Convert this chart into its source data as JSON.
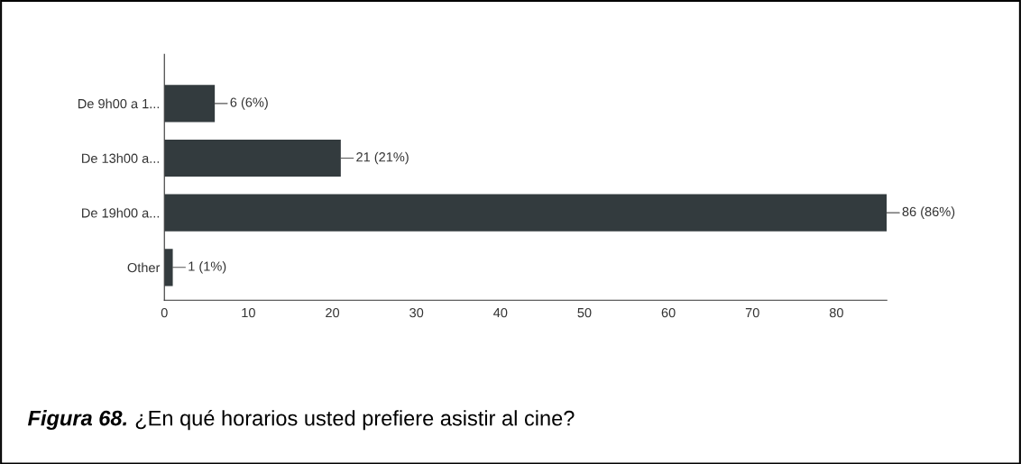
{
  "chart_data": {
    "type": "bar",
    "orientation": "horizontal",
    "title": "Figura 68.",
    "subtitle": "¿En qué horarios usted prefiere asistir al cine?",
    "categories": [
      "De 9h00 a 1...",
      "De 13h00 a...",
      "De 19h00 a...",
      "Other"
    ],
    "values": [
      6,
      21,
      86,
      1
    ],
    "value_labels": [
      "6 (6%)",
      "21 (21%)",
      "86 (86%)",
      "1 (1%)"
    ],
    "color": "#333b3e",
    "xlim": [
      0,
      86
    ],
    "xticks": [
      0,
      10,
      20,
      30,
      40,
      50,
      60,
      70,
      80
    ],
    "grid": false,
    "legend": false
  }
}
